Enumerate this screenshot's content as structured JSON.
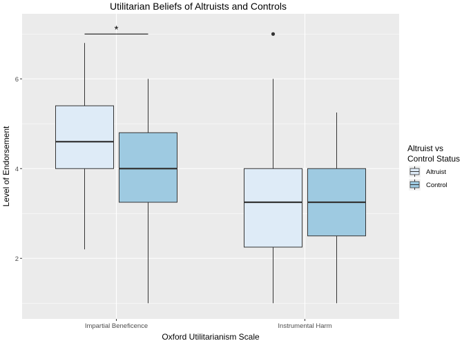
{
  "chart_data": {
    "type": "boxplot",
    "title": "Utilitarian Beliefs of Altruists and Controls",
    "xlabel": "Oxford Utilitarianism Scale",
    "ylabel": "Level of Endorsement",
    "categories": [
      "Impartial Beneficence",
      "Instrumental Harm"
    ],
    "yticks": [
      "2",
      "4",
      "6"
    ],
    "ylim": [
      0.65,
      7.45
    ],
    "grid": true,
    "legend": {
      "title_line1": "Altruist vs",
      "title_line2": "Control Status",
      "placement": "right",
      "entries": [
        {
          "label": "Altruist",
          "color": "#deebf7"
        },
        {
          "label": "Control",
          "color": "#9ecae1"
        }
      ]
    },
    "series": [
      {
        "name": "Altruist",
        "color": "#deebf7",
        "boxes": [
          {
            "min": 2.2,
            "q1": 4.0,
            "median": 4.6,
            "q3": 5.4,
            "max": 6.8,
            "outliers": []
          },
          {
            "min": 1.0,
            "q1": 2.25,
            "median": 3.25,
            "q3": 4.0,
            "max": 6.0,
            "outliers": [
              7.0
            ]
          }
        ]
      },
      {
        "name": "Control",
        "color": "#9ecae1",
        "boxes": [
          {
            "min": 1.0,
            "q1": 3.25,
            "median": 4.0,
            "q3": 4.8,
            "max": 6.0,
            "outliers": []
          },
          {
            "min": 1.0,
            "q1": 2.5,
            "median": 3.25,
            "q3": 4.0,
            "max": 5.25,
            "outliers": []
          }
        ]
      }
    ],
    "annotations": [
      {
        "text": "*",
        "category": "Impartial Beneficence",
        "bracket_y": 7.0
      }
    ]
  }
}
